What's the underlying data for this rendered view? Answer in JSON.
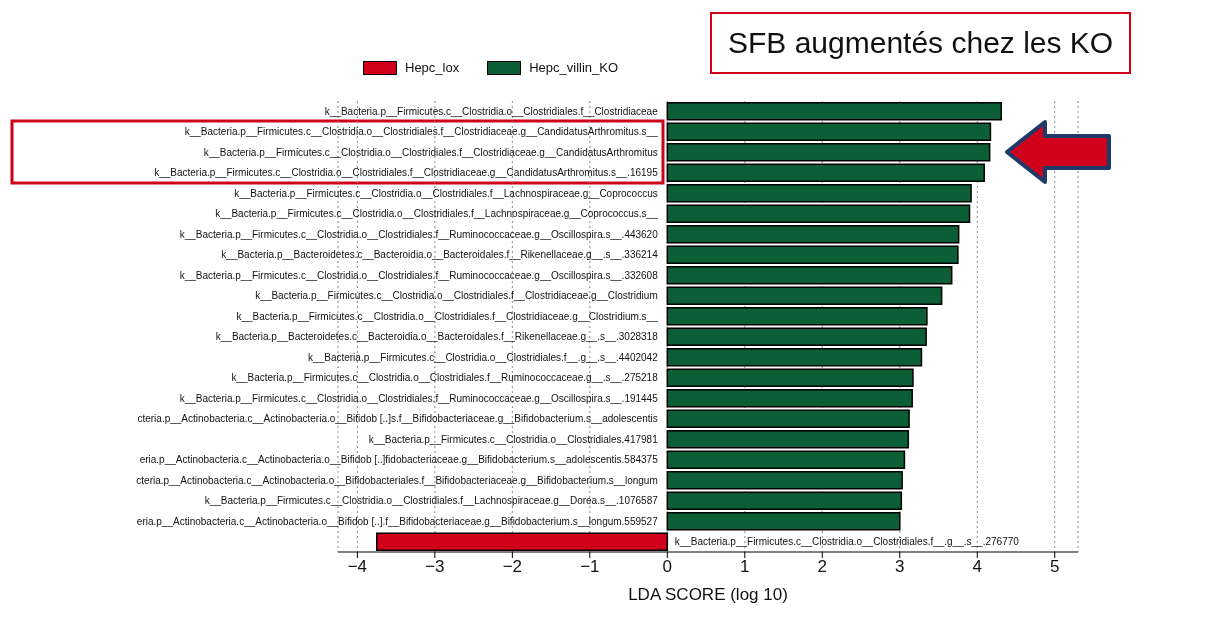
{
  "chart_data": {
    "type": "bar",
    "orientation": "horizontal",
    "xlabel": "LDA SCORE (log 10)",
    "annotations": [
      "SFB augmentés chez les KO"
    ],
    "categories": [
      "k__Bacteria.p__Firmicutes.c__Clostridia.o__Clostridiales.f__Clostridiaceae",
      "k__Bacteria.p__Firmicutes.c__Clostridia.o__Clostridiales.f__Clostridiaceae.g__CandidatusArthromitus.s__",
      "k__Bacteria.p__Firmicutes.c__Clostridia.o__Clostridiales.f__Clostridiaceae.g__CandidatusArthromitus",
      "k__Bacteria.p__Firmicutes.c__Clostridia.o__Clostridiales.f__Clostridiaceae.g__CandidatusArthromitus.s__.16195",
      "k__Bacteria.p__Firmicutes.c__Clostridia.o__Clostridiales.f__Lachnospiraceae.g__Coprococcus",
      "k__Bacteria.p__Firmicutes.c__Clostridia.o__Clostridiales.f__Lachnospiraceae.g__Coprococcus.s__",
      "k__Bacteria.p__Firmicutes.c__Clostridia.o__Clostridiales.f__Ruminococcaceae.g__Oscillospira.s__.443620",
      "k__Bacteria.p__Bacteroidetes.c__Bacteroidia.o__Bacteroidales.f__Rikenellaceae.g__.s__.336214",
      "k__Bacteria.p__Firmicutes.c__Clostridia.o__Clostridiales.f__Ruminococcaceae.g__Oscillospira.s__.332608",
      "k__Bacteria.p__Firmicutes.c__Clostridia.o__Clostridiales.f__Clostridiaceae.g__Clostridium",
      "k__Bacteria.p__Firmicutes.c__Clostridia.o__Clostridiales.f__Clostridiaceae.g__Clostridium.s__",
      "k__Bacteria.p__Bacteroidetes.c__Bacteroidia.o__Bacteroidales.f__Rikenellaceae.g__.s__.3028318",
      "k__Bacteria.p__Firmicutes.c__Clostridia.o__Clostridiales.f__.g__.s__.4402042",
      "k__Bacteria.p__Firmicutes.c__Clostridia.o__Clostridiales.f__Ruminococcaceae.g__.s__.275218",
      "k__Bacteria.p__Firmicutes.c__Clostridia.o__Clostridiales.f__Ruminococcaceae.g__Oscillospira.s__.191445",
      "cteria.p__Actinobacteria.c__Actinobacteria.o__Bifidob [..]s.f__Bifidobacteriaceae.g__Bifidobacterium.s__adolescentis",
      "k__Bacteria.p__Firmicutes.c__Clostridia.o__Clostridiales.417981",
      "eria.p__Actinobacteria.c__Actinobacteria.o__Bifidob [..]fidobacteriaceae.g__Bifidobacterium.s__adolescentis.584375",
      "cteria.p__Actinobacteria.c__Actinobacteria.o__Bifidobacteriales.f__Bifidobacteriaceae.g__Bifidobacterium.s__longum",
      "k__Bacteria.p__Firmicutes.c__Clostridia.o__Clostridiales.f__Lachnospiraceae.g__Dorea.s__.1076587",
      "eria.p__Actinobacteria.c__Actinobacteria.o__Bifidob [..].f__Bifidobacteriaceae.g__Bifidobacterium.s__longum.559527",
      "k__Bacteria.p__Firmicutes.c__Clostridia.o__Clostridiales.f__.g__.s__.276770"
    ],
    "series": [
      {
        "name": "Hepc_lox",
        "color": "#d0021b",
        "values": [
          null,
          null,
          null,
          null,
          null,
          null,
          null,
          null,
          null,
          null,
          null,
          null,
          null,
          null,
          null,
          null,
          null,
          null,
          null,
          null,
          null,
          -3.75
        ]
      },
      {
        "name": "Hepc_villin_KO",
        "color": "#0b5e36",
        "values": [
          4.31,
          4.17,
          4.16,
          4.09,
          3.92,
          3.9,
          3.76,
          3.75,
          3.67,
          3.54,
          3.35,
          3.34,
          3.28,
          3.17,
          3.16,
          3.12,
          3.11,
          3.06,
          3.03,
          3.02,
          3.0,
          null
        ]
      }
    ],
    "xlim": [
      -4.25,
      5.3
    ],
    "xticks": [
      -4,
      -3,
      -2,
      -1,
      0,
      1,
      2,
      3,
      4,
      5
    ],
    "grid": "x",
    "legend": "top"
  }
}
